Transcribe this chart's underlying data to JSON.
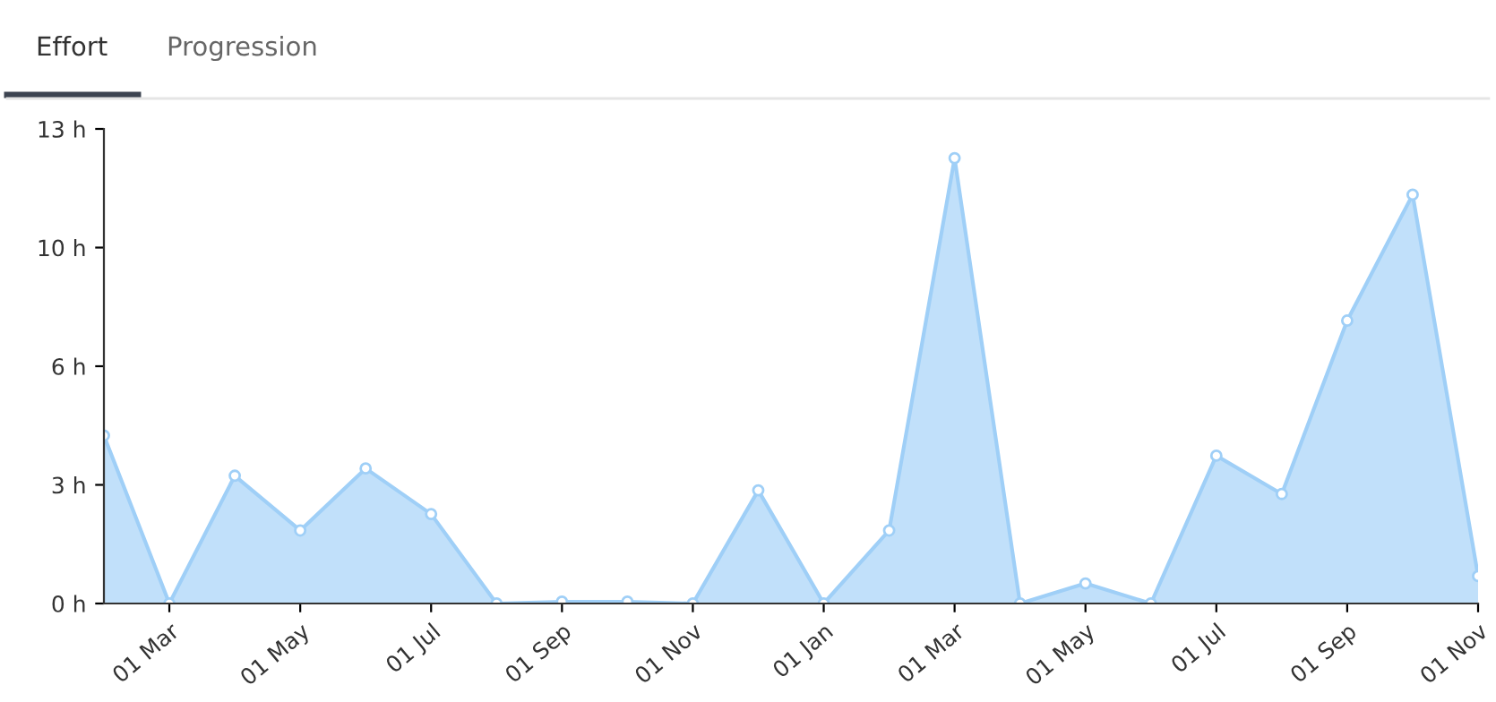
{
  "chart_data": {
    "type": "area",
    "annotations": [
      "Effort",
      "Progression"
    ],
    "categories": [
      null,
      "01 Mar",
      null,
      "01 May",
      null,
      "01 Jul",
      null,
      "01 Sep",
      null,
      "01 Nov",
      null,
      "01 Jan",
      null,
      "01 Mar",
      null,
      "01 May",
      null,
      "01 Jul",
      null,
      "01 Sep",
      null,
      "01 Nov"
    ],
    "series": [
      {
        "color": "#9fcff7",
        "values": [
          4.6,
          0,
          3.5,
          2.0,
          3.7,
          2.45,
          0,
          0.05,
          0.05,
          0,
          3.1,
          0,
          2.0,
          12.2,
          0,
          0.55,
          0,
          4.05,
          3.0,
          7.75,
          11.2,
          0.75
        ]
      }
    ],
    "ylim": [
      0,
      13
    ],
    "yticks": [
      {
        "value": 0,
        "label": "0 h"
      },
      {
        "value": 3.25,
        "label": "3 h"
      },
      {
        "value": 6.5,
        "label": "6 h"
      },
      {
        "value": 9.75,
        "label": "10 h"
      },
      {
        "value": 13,
        "label": "13 h"
      }
    ],
    "marker": "circle",
    "grid": false,
    "legend": false
  }
}
